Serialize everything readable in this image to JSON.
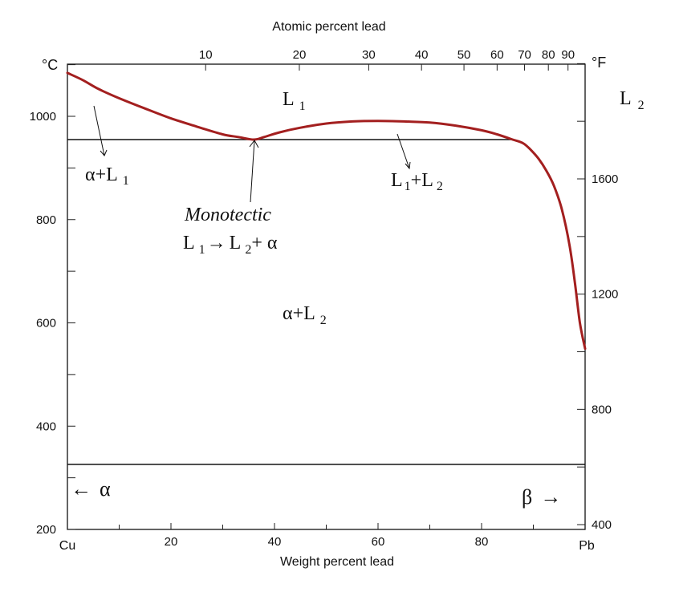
{
  "chart_data": {
    "type": "line",
    "colors": {
      "curve": "#a31f1f",
      "lines": "#111111"
    },
    "top_axis": {
      "label": "Atomic percent lead",
      "ticks": [
        {
          "label": "10",
          "wt": 26.7
        },
        {
          "label": "20",
          "wt": 44.8
        },
        {
          "label": "30",
          "wt": 58.2
        },
        {
          "label": "40",
          "wt": 68.4
        },
        {
          "label": "50",
          "wt": 76.6
        },
        {
          "label": "60",
          "wt": 83.0
        },
        {
          "label": "70",
          "wt": 88.3
        },
        {
          "label": "80",
          "wt": 92.9
        },
        {
          "label": "90",
          "wt": 96.7
        }
      ]
    },
    "bottom_axis": {
      "label": "Weight percent lead",
      "range": [
        0,
        100
      ],
      "left_end_label": "Cu",
      "right_end_label": "Pb",
      "labeled_ticks": [
        {
          "label": "20",
          "value": 20
        },
        {
          "label": "40",
          "value": 40
        },
        {
          "label": "60",
          "value": 60
        },
        {
          "label": "80",
          "value": 80
        }
      ],
      "minor_ticks": [
        10,
        30,
        50,
        70,
        90
      ]
    },
    "left_axis": {
      "unit": "°C",
      "range": [
        200,
        1100
      ],
      "labeled_ticks": [
        {
          "label": "200",
          "value": 200
        },
        {
          "label": "400",
          "value": 400
        },
        {
          "label": "600",
          "value": 600
        },
        {
          "label": "800",
          "value": 800
        },
        {
          "label": "1000",
          "value": 1000
        }
      ],
      "minor_ticks": [
        300,
        500,
        700,
        900,
        1100
      ]
    },
    "right_axis": {
      "unit": "°F",
      "labeled_ticks": [
        {
          "label": "400",
          "value": 400
        },
        {
          "label": "800",
          "value": 800
        },
        {
          "label": "1200",
          "value": 1200
        },
        {
          "label": "1600",
          "value": 1600
        }
      ],
      "minor_ticks": [
        600,
        1000,
        1400,
        1800,
        2000
      ]
    },
    "liquidus_curve": {
      "wt_pb": [
        0,
        3,
        6,
        10,
        15,
        20,
        25,
        30,
        33,
        36,
        38,
        41,
        45,
        50,
        55,
        60,
        65,
        70,
        75,
        80,
        83,
        86,
        88,
        89.5,
        91,
        92.5,
        94,
        95.5,
        97,
        98,
        99,
        100
      ],
      "temp_c": [
        1084,
        1070,
        1053,
        1035,
        1015,
        996,
        980,
        965,
        960,
        955,
        960,
        969,
        978,
        986,
        990,
        991,
        990,
        988,
        982,
        973,
        965,
        955,
        948,
        935,
        918,
        895,
        865,
        820,
        750,
        680,
        600,
        550
      ]
    },
    "monotectic_line": {
      "temp": 955,
      "wt_from": 0,
      "wt_to": 86
    },
    "eutectic_line": {
      "temp": 326,
      "wt_from": 0,
      "wt_to": 100
    },
    "region_labels": {
      "L1": {
        "main": "L",
        "sub": "1"
      },
      "L2": {
        "main": "L",
        "sub": "2"
      },
      "aL1": {
        "main": "α+L",
        "sub": "1"
      },
      "L1L2": {
        "a": "L",
        "s1": "1",
        "b": "+L",
        "s2": "2"
      },
      "aL2": {
        "main": "α+L",
        "sub": "2"
      },
      "monotectic_title": "Monotectic",
      "reaction": {
        "a": "L",
        "s1": "1",
        "arrow": "→",
        "b": "L",
        "s2": "2",
        "c": "+ α"
      },
      "alpha": {
        "arrow": "←",
        "sym": "α"
      },
      "beta": {
        "sym": "β",
        "arrow": "→"
      }
    }
  }
}
